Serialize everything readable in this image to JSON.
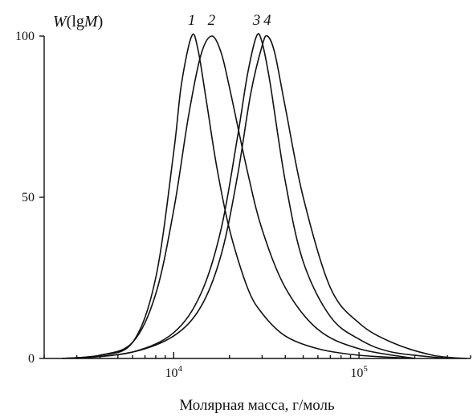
{
  "chart_data": {
    "type": "line",
    "title": "",
    "ylabel_parts": [
      "W",
      "(lg",
      "M",
      ")"
    ],
    "xlabel": "Молярная масса, г/моль",
    "x_scale": "log",
    "xlim": [
      2000,
      400000
    ],
    "ylim": [
      0,
      100
    ],
    "y_ticks": [
      0,
      50,
      100
    ],
    "x_ticks": [
      {
        "value": 10000,
        "base": "10",
        "exp": "4"
      },
      {
        "value": 100000,
        "base": "10",
        "exp": "5"
      }
    ],
    "grid": false,
    "legend": "none",
    "series": [
      {
        "label": "1",
        "x": [
          2500,
          4000,
          6000,
          8000,
          10000,
          11000,
          12500,
          13500,
          15000,
          17000,
          20000,
          25000,
          30000,
          40000,
          60000,
          100000,
          200000
        ],
        "y": [
          0,
          1,
          5,
          25,
          64,
          85,
          100,
          96,
          80,
          60,
          40,
          22,
          14,
          7,
          3,
          1,
          0
        ]
      },
      {
        "label": "2",
        "x": [
          2500,
          4000,
          6000,
          8000,
          10000,
          12000,
          14000,
          16000,
          18000,
          20000,
          25000,
          30000,
          40000,
          60000,
          100000,
          200000
        ],
        "y": [
          0,
          1,
          5,
          20,
          46,
          75,
          94,
          100,
          95,
          84,
          58,
          40,
          22,
          9,
          3,
          0
        ]
      },
      {
        "label": "3",
        "x": [
          3000,
          6000,
          10000,
          14000,
          18000,
          22000,
          25000,
          28000,
          30000,
          33000,
          40000,
          50000,
          70000,
          100000,
          150000,
          300000
        ],
        "y": [
          0,
          2,
          8,
          20,
          40,
          68,
          88,
          100,
          98,
          86,
          55,
          30,
          13,
          6,
          2,
          0
        ]
      },
      {
        "label": "4",
        "x": [
          3000,
          6000,
          10000,
          14000,
          18000,
          22000,
          26000,
          30000,
          32000,
          35000,
          40000,
          50000,
          70000,
          100000,
          150000,
          250000,
          380000
        ],
        "y": [
          0,
          2,
          7,
          16,
          32,
          56,
          82,
          97,
          100,
          95,
          78,
          50,
          22,
          11,
          5,
          1,
          0
        ]
      }
    ]
  }
}
